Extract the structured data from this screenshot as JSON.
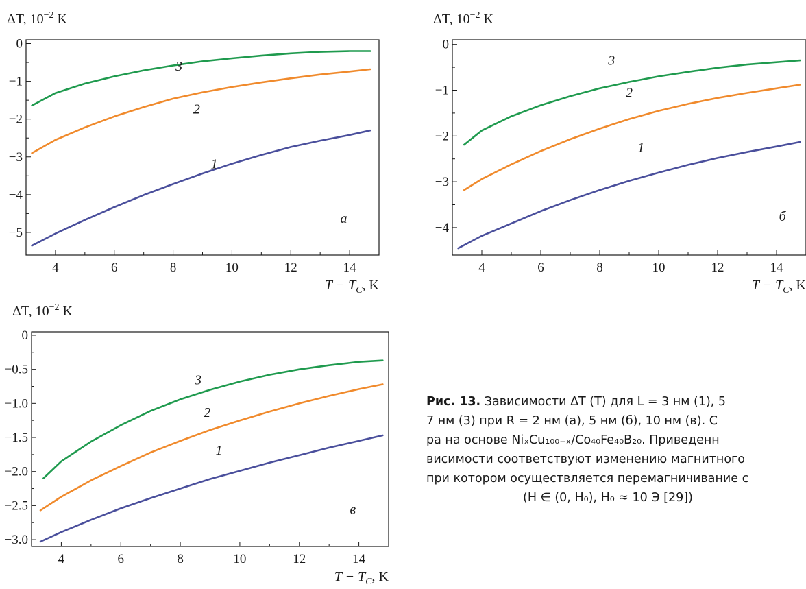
{
  "chart_data": [
    {
      "type": "line",
      "panel_label": "а",
      "ylabel_main": "ΔT, 10",
      "ylabel_exp": "−2",
      "ylabel_unit": " K",
      "xlabel": "T − T",
      "xlabel_sub": "C",
      "xlabel_unit": ", K",
      "xlim": [
        3,
        15
      ],
      "ylim": [
        -5.6,
        0.1
      ],
      "x_ticks": [
        4,
        6,
        8,
        10,
        12,
        14
      ],
      "y_ticks": [
        0,
        -1,
        -2,
        -3,
        -4,
        -5
      ],
      "y_tick_labels": [
        "0",
        "−1",
        "−2",
        "−3",
        "−4",
        "−5"
      ],
      "series": [
        {
          "name": "1",
          "color": "#4a4f9c",
          "x": [
            3.2,
            4,
            5,
            6,
            7,
            8,
            9,
            10,
            11,
            12,
            13,
            14,
            14.7
          ],
          "values": [
            -5.35,
            -5.03,
            -4.67,
            -4.33,
            -4.01,
            -3.72,
            -3.44,
            -3.18,
            -2.95,
            -2.74,
            -2.57,
            -2.42,
            -2.3
          ]
        },
        {
          "name": "2",
          "color": "#f08a2c",
          "x": [
            3.2,
            4,
            5,
            6,
            7,
            8,
            9,
            10,
            11,
            12,
            13,
            14,
            14.7
          ],
          "values": [
            -2.9,
            -2.55,
            -2.22,
            -1.93,
            -1.68,
            -1.46,
            -1.29,
            -1.15,
            -1.03,
            -0.92,
            -0.82,
            -0.74,
            -0.68
          ]
        },
        {
          "name": "3",
          "color": "#1f9a4e",
          "x": [
            3.2,
            4,
            5,
            6,
            7,
            8,
            9,
            10,
            11,
            12,
            13,
            14,
            14.7
          ],
          "values": [
            -1.64,
            -1.31,
            -1.06,
            -0.87,
            -0.71,
            -0.58,
            -0.47,
            -0.39,
            -0.32,
            -0.26,
            -0.22,
            -0.2,
            -0.2
          ]
        }
      ],
      "curve_labels": [
        {
          "text": "1",
          "x": 9.4,
          "y": -3.3
        },
        {
          "text": "2",
          "x": 8.8,
          "y": -1.85
        },
        {
          "text": "3",
          "x": 8.2,
          "y": -0.72
        }
      ],
      "panel_label_pos": {
        "x": 13.8,
        "y": -4.75
      }
    },
    {
      "type": "line",
      "panel_label": "б",
      "ylabel_main": "ΔT, 10",
      "ylabel_exp": "−2",
      "ylabel_unit": " K",
      "xlabel": "T − T",
      "xlabel_sub": "C",
      "xlabel_unit": ", K",
      "xlim": [
        3,
        15
      ],
      "ylim": [
        -4.6,
        0.1
      ],
      "x_ticks": [
        4,
        6,
        8,
        10,
        12,
        14
      ],
      "y_ticks": [
        0,
        -1,
        -2,
        -3,
        -4
      ],
      "y_tick_labels": [
        "0",
        "−1",
        "−2",
        "−3",
        "−4"
      ],
      "series": [
        {
          "name": "1",
          "color": "#4a4f9c",
          "x": [
            3.2,
            4,
            5,
            6,
            7,
            8,
            9,
            10,
            11,
            12,
            13,
            14,
            14.8
          ],
          "values": [
            -4.45,
            -4.18,
            -3.91,
            -3.64,
            -3.4,
            -3.18,
            -2.98,
            -2.8,
            -2.63,
            -2.48,
            -2.35,
            -2.23,
            -2.13
          ]
        },
        {
          "name": "2",
          "color": "#f08a2c",
          "x": [
            3.4,
            4,
            5,
            6,
            7,
            8,
            9,
            10,
            11,
            12,
            13,
            14,
            14.8
          ],
          "values": [
            -3.18,
            -2.94,
            -2.62,
            -2.33,
            -2.07,
            -1.84,
            -1.63,
            -1.45,
            -1.3,
            -1.17,
            -1.06,
            -0.96,
            -0.88
          ]
        },
        {
          "name": "3",
          "color": "#1f9a4e",
          "x": [
            3.4,
            4,
            5,
            6,
            7,
            8,
            9,
            10,
            11,
            12,
            13,
            14,
            14.8
          ],
          "values": [
            -2.19,
            -1.88,
            -1.57,
            -1.33,
            -1.13,
            -0.96,
            -0.82,
            -0.7,
            -0.6,
            -0.51,
            -0.44,
            -0.39,
            -0.35
          ]
        }
      ],
      "curve_labels": [
        {
          "text": "1",
          "x": 9.4,
          "y": -2.35
        },
        {
          "text": "2",
          "x": 9.0,
          "y": -1.15
        },
        {
          "text": "3",
          "x": 8.4,
          "y": -0.45
        }
      ],
      "panel_label_pos": {
        "x": 14.2,
        "y": -3.85
      }
    },
    {
      "type": "line",
      "panel_label": "в",
      "ylabel_main": "ΔT, 10",
      "ylabel_exp": "−2",
      "ylabel_unit": " K",
      "xlabel": "T − T",
      "xlabel_sub": "C",
      "xlabel_unit": ", K",
      "xlim": [
        3,
        15
      ],
      "ylim": [
        -3.1,
        0.05
      ],
      "x_ticks": [
        4,
        6,
        8,
        10,
        12,
        14
      ],
      "y_ticks": [
        0,
        -0.5,
        -1.0,
        -1.5,
        -2.0,
        -2.5,
        -3.0
      ],
      "y_tick_labels": [
        "0",
        "−0.5",
        "−1.0",
        "−1.5",
        "−2.0",
        "−2.5",
        "−3.0"
      ],
      "series": [
        {
          "name": "1",
          "color": "#4a4f9c",
          "x": [
            3.3,
            4,
            5,
            6,
            7,
            8,
            9,
            10,
            11,
            12,
            13,
            14,
            14.8
          ],
          "values": [
            -3.03,
            -2.89,
            -2.71,
            -2.54,
            -2.39,
            -2.25,
            -2.11,
            -1.99,
            -1.87,
            -1.76,
            -1.65,
            -1.55,
            -1.47
          ]
        },
        {
          "name": "2",
          "color": "#f08a2c",
          "x": [
            3.3,
            4,
            5,
            6,
            7,
            8,
            9,
            10,
            11,
            12,
            13,
            14,
            14.8
          ],
          "values": [
            -2.57,
            -2.37,
            -2.13,
            -1.92,
            -1.72,
            -1.55,
            -1.39,
            -1.25,
            -1.12,
            -1.0,
            -0.89,
            -0.79,
            -0.72
          ]
        },
        {
          "name": "3",
          "color": "#1f9a4e",
          "x": [
            3.4,
            4,
            5,
            6,
            7,
            8,
            9,
            10,
            11,
            12,
            13,
            14,
            14.8
          ],
          "values": [
            -2.1,
            -1.85,
            -1.56,
            -1.32,
            -1.11,
            -0.94,
            -0.8,
            -0.68,
            -0.58,
            -0.5,
            -0.44,
            -0.39,
            -0.37
          ]
        }
      ],
      "curve_labels": [
        {
          "text": "1",
          "x": 9.3,
          "y": -1.75
        },
        {
          "text": "2",
          "x": 8.9,
          "y": -1.2
        },
        {
          "text": "3",
          "x": 8.6,
          "y": -0.72
        }
      ],
      "panel_label_pos": {
        "x": 13.8,
        "y": -2.62
      }
    }
  ],
  "caption": {
    "fig_label": "Рис. 13.",
    "line1": "Зависимости ΔT (T) для L = 3 нм (1), 5",
    "line2": "7 нм (3) при R = 2 нм (а), 5 нм (б), 10 нм (в). С",
    "line3": "ра на основе NiₓCu₁₀₀₋ₓ/Co₄₀Fe₄₀B₂₀. Приведенн",
    "line4": "висимости соответствуют изменению магнитного",
    "line5": "при котором осуществляется перемагничивание с",
    "line6": "(H ∈ (0, H₀), H₀ ≈ 10 Э [29])"
  }
}
